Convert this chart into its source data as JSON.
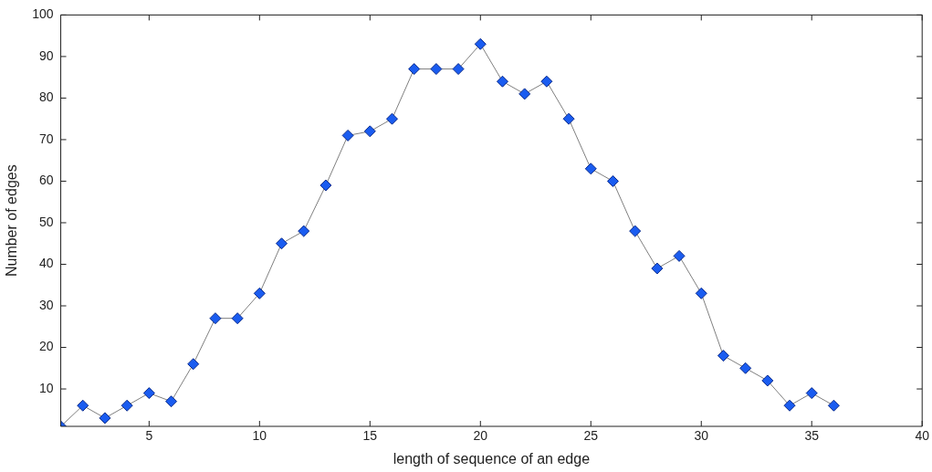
{
  "chart_data": {
    "type": "line",
    "xlabel": "length of sequence of an edge",
    "ylabel": "Number of edges",
    "xlim": [
      1,
      40
    ],
    "xticks": [
      5,
      10,
      15,
      20,
      25,
      30,
      35,
      40
    ],
    "ylim": [
      1,
      100
    ],
    "yticks": [
      10,
      20,
      30,
      40,
      50,
      60,
      70,
      80,
      90,
      100
    ],
    "grid": false,
    "legend": false,
    "marker": "diamond",
    "line_style": "solid",
    "series": [
      {
        "color": "#1a5cf0",
        "x": [
          1,
          2,
          3,
          4,
          5,
          6,
          7,
          8,
          9,
          10,
          11,
          12,
          13,
          14,
          15,
          16,
          17,
          18,
          19,
          20,
          21,
          22,
          23,
          24,
          25,
          26,
          27,
          28,
          29,
          30,
          31,
          32,
          33,
          34,
          35,
          36
        ],
        "values": [
          1,
          6,
          3,
          6,
          9,
          7,
          16,
          27,
          27,
          33,
          45,
          48,
          59,
          71,
          72,
          75,
          87,
          87,
          87,
          93,
          84,
          81,
          84,
          75,
          63,
          60,
          48,
          39,
          42,
          33,
          18,
          15,
          12,
          6,
          9,
          6
        ]
      }
    ]
  }
}
